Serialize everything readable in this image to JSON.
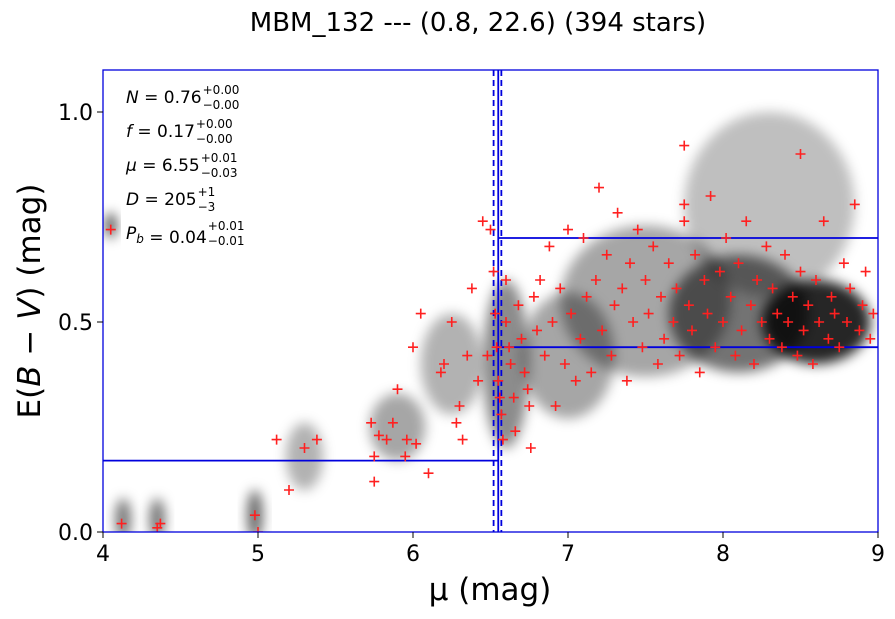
{
  "chart_data": {
    "type": "scatter",
    "title": "MBM_132 --- (0.8, 22.6) (394 stars)",
    "xlabel": "μ (mag)",
    "ylabel_parts": {
      "pre": "E(",
      "b": "B",
      "mid": " − ",
      "v": "V",
      "post": ") (mag)"
    },
    "xlim": [
      4,
      9
    ],
    "ylim": [
      0,
      1.1
    ],
    "xticks": [
      4,
      5,
      6,
      7,
      8,
      9
    ],
    "xtick_labels": [
      "4",
      "5",
      "6",
      "7",
      "8",
      "9"
    ],
    "yticks": [
      0.0,
      0.5,
      1.0
    ],
    "ytick_labels": [
      "0.0",
      "0.5",
      "1.0"
    ],
    "grid": false,
    "annotations": [
      {
        "lhs": "N",
        "val": "0.76",
        "up": "+0.00",
        "lo": "−0.00"
      },
      {
        "lhs": "f",
        "val": "0.17",
        "up": "+0.00",
        "lo": "−0.00"
      },
      {
        "lhs": "μ",
        "val": "6.55",
        "up": "+0.01",
        "lo": "−0.03"
      },
      {
        "lhs": "D",
        "val": "205",
        "up": "+1",
        "lo": "−3"
      },
      {
        "lhs": "P",
        "sub": "b",
        "val": "0.04",
        "up": "+0.01",
        "lo": "−0.01"
      }
    ],
    "model_steps": [
      {
        "x_from": 4.0,
        "x_to": 6.55,
        "y": 0.17
      },
      {
        "x_from": 6.55,
        "x_to": 9.0,
        "y": 0.44
      },
      {
        "x_from": 6.55,
        "x_to": 9.0,
        "y": 0.7
      }
    ],
    "model_step_x": 6.55,
    "dashed_vlines_x": [
      6.52,
      6.57
    ],
    "colors": {
      "points": "#ff2020",
      "model": "#0000dd",
      "density": "#000000"
    },
    "density_blobs": [
      {
        "x": 8.6,
        "y": 0.5,
        "sx": 0.35,
        "sy": 0.1,
        "a": 0.85
      },
      {
        "x": 8.1,
        "y": 0.52,
        "sx": 0.45,
        "sy": 0.14,
        "a": 0.55
      },
      {
        "x": 7.5,
        "y": 0.55,
        "sx": 0.55,
        "sy": 0.18,
        "a": 0.35
      },
      {
        "x": 8.3,
        "y": 0.78,
        "sx": 0.55,
        "sy": 0.22,
        "a": 0.25
      },
      {
        "x": 7.0,
        "y": 0.42,
        "sx": 0.3,
        "sy": 0.15,
        "a": 0.35
      },
      {
        "x": 6.6,
        "y": 0.4,
        "sx": 0.15,
        "sy": 0.2,
        "a": 0.45
      },
      {
        "x": 6.25,
        "y": 0.4,
        "sx": 0.2,
        "sy": 0.12,
        "a": 0.3
      },
      {
        "x": 5.9,
        "y": 0.25,
        "sx": 0.18,
        "sy": 0.08,
        "a": 0.35
      },
      {
        "x": 5.3,
        "y": 0.18,
        "sx": 0.12,
        "sy": 0.08,
        "a": 0.3
      },
      {
        "x": 4.98,
        "y": 0.04,
        "sx": 0.05,
        "sy": 0.06,
        "a": 0.6
      },
      {
        "x": 4.35,
        "y": 0.03,
        "sx": 0.05,
        "sy": 0.05,
        "a": 0.55
      },
      {
        "x": 4.13,
        "y": 0.03,
        "sx": 0.05,
        "sy": 0.05,
        "a": 0.55
      },
      {
        "x": 4.05,
        "y": 0.73,
        "sx": 0.03,
        "sy": 0.03,
        "a": 0.85
      }
    ],
    "points": [
      [
        4.05,
        0.72
      ],
      [
        4.12,
        0.02
      ],
      [
        4.35,
        0.01
      ],
      [
        4.37,
        0.02
      ],
      [
        4.98,
        0.04
      ],
      [
        5.0,
        0.0
      ],
      [
        5.12,
        0.22
      ],
      [
        5.2,
        0.1
      ],
      [
        5.3,
        0.2
      ],
      [
        5.38,
        0.22
      ],
      [
        5.73,
        0.26
      ],
      [
        5.75,
        0.18
      ],
      [
        5.75,
        0.12
      ],
      [
        5.78,
        0.23
      ],
      [
        5.83,
        0.22
      ],
      [
        5.87,
        0.26
      ],
      [
        5.9,
        0.34
      ],
      [
        5.95,
        0.18
      ],
      [
        5.96,
        0.22
      ],
      [
        6.0,
        0.44
      ],
      [
        6.02,
        0.21
      ],
      [
        6.05,
        0.52
      ],
      [
        6.1,
        0.14
      ],
      [
        6.18,
        0.38
      ],
      [
        6.2,
        0.4
      ],
      [
        6.25,
        0.5
      ],
      [
        6.28,
        0.26
      ],
      [
        6.3,
        0.3
      ],
      [
        6.32,
        0.22
      ],
      [
        6.35,
        0.42
      ],
      [
        6.38,
        0.58
      ],
      [
        6.42,
        0.36
      ],
      [
        6.45,
        0.74
      ],
      [
        6.48,
        0.42
      ],
      [
        6.5,
        0.72
      ],
      [
        6.52,
        0.62
      ],
      [
        6.53,
        0.52
      ],
      [
        6.54,
        0.44
      ],
      [
        6.55,
        0.36
      ],
      [
        6.56,
        0.32
      ],
      [
        6.57,
        0.28
      ],
      [
        6.58,
        0.22
      ],
      [
        6.6,
        0.6
      ],
      [
        6.6,
        0.5
      ],
      [
        6.62,
        0.44
      ],
      [
        6.63,
        0.4
      ],
      [
        6.65,
        0.32
      ],
      [
        6.66,
        0.24
      ],
      [
        6.68,
        0.54
      ],
      [
        6.7,
        0.46
      ],
      [
        6.72,
        0.38
      ],
      [
        6.74,
        0.34
      ],
      [
        6.75,
        0.3
      ],
      [
        6.76,
        0.2
      ],
      [
        6.78,
        0.56
      ],
      [
        6.8,
        0.48
      ],
      [
        6.82,
        0.6
      ],
      [
        6.85,
        0.42
      ],
      [
        6.88,
        0.68
      ],
      [
        6.9,
        0.5
      ],
      [
        6.92,
        0.3
      ],
      [
        6.95,
        0.58
      ],
      [
        6.98,
        0.4
      ],
      [
        7.0,
        0.72
      ],
      [
        7.02,
        0.52
      ],
      [
        7.05,
        0.36
      ],
      [
        7.08,
        0.46
      ],
      [
        7.1,
        0.7
      ],
      [
        7.12,
        0.56
      ],
      [
        7.15,
        0.38
      ],
      [
        7.18,
        0.6
      ],
      [
        7.2,
        0.82
      ],
      [
        7.22,
        0.48
      ],
      [
        7.25,
        0.66
      ],
      [
        7.28,
        0.42
      ],
      [
        7.3,
        0.54
      ],
      [
        7.32,
        0.76
      ],
      [
        7.35,
        0.58
      ],
      [
        7.38,
        0.36
      ],
      [
        7.4,
        0.64
      ],
      [
        7.42,
        0.5
      ],
      [
        7.45,
        0.72
      ],
      [
        7.48,
        0.44
      ],
      [
        7.5,
        0.6
      ],
      [
        7.52,
        0.52
      ],
      [
        7.55,
        0.68
      ],
      [
        7.58,
        0.4
      ],
      [
        7.6,
        0.56
      ],
      [
        7.62,
        0.46
      ],
      [
        7.65,
        0.64
      ],
      [
        7.68,
        0.5
      ],
      [
        7.7,
        0.58
      ],
      [
        7.72,
        0.42
      ],
      [
        7.75,
        0.92
      ],
      [
        7.75,
        0.78
      ],
      [
        7.75,
        0.74
      ],
      [
        7.78,
        0.54
      ],
      [
        7.8,
        0.48
      ],
      [
        7.82,
        0.66
      ],
      [
        7.85,
        0.38
      ],
      [
        7.88,
        0.6
      ],
      [
        7.9,
        0.52
      ],
      [
        7.92,
        0.8
      ],
      [
        7.95,
        0.44
      ],
      [
        7.98,
        0.62
      ],
      [
        8.0,
        0.5
      ],
      [
        8.02,
        0.7
      ],
      [
        8.05,
        0.56
      ],
      [
        8.08,
        0.42
      ],
      [
        8.1,
        0.64
      ],
      [
        8.12,
        0.48
      ],
      [
        8.15,
        0.74
      ],
      [
        8.18,
        0.54
      ],
      [
        8.2,
        0.4
      ],
      [
        8.22,
        0.6
      ],
      [
        8.25,
        0.5
      ],
      [
        8.28,
        0.68
      ],
      [
        8.3,
        0.46
      ],
      [
        8.32,
        0.58
      ],
      [
        8.35,
        0.52
      ],
      [
        8.38,
        0.44
      ],
      [
        8.4,
        0.66
      ],
      [
        8.42,
        0.5
      ],
      [
        8.45,
        0.56
      ],
      [
        8.48,
        0.42
      ],
      [
        8.5,
        0.9
      ],
      [
        8.5,
        0.62
      ],
      [
        8.52,
        0.48
      ],
      [
        8.55,
        0.54
      ],
      [
        8.58,
        0.4
      ],
      [
        8.6,
        0.6
      ],
      [
        8.62,
        0.5
      ],
      [
        8.65,
        0.74
      ],
      [
        8.68,
        0.46
      ],
      [
        8.7,
        0.56
      ],
      [
        8.72,
        0.52
      ],
      [
        8.75,
        0.44
      ],
      [
        8.78,
        0.64
      ],
      [
        8.8,
        0.5
      ],
      [
        8.82,
        0.58
      ],
      [
        8.85,
        0.78
      ],
      [
        8.88,
        0.48
      ],
      [
        8.9,
        0.54
      ],
      [
        8.92,
        0.62
      ],
      [
        8.95,
        0.46
      ],
      [
        8.97,
        0.52
      ]
    ]
  }
}
